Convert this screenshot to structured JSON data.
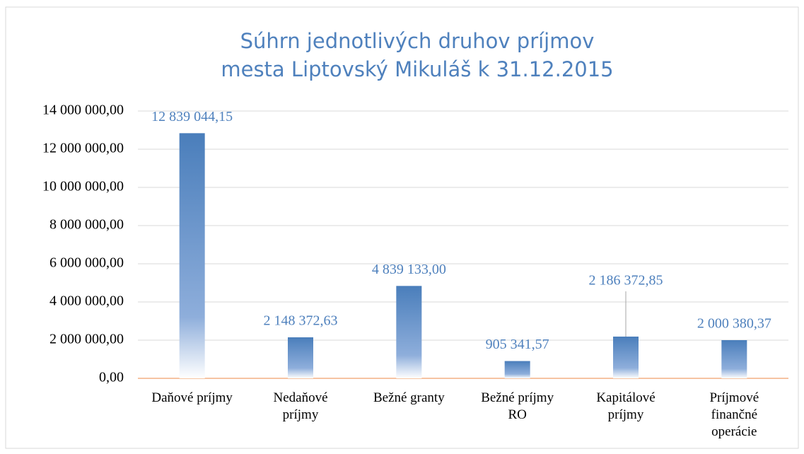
{
  "chart_data": {
    "type": "bar",
    "title": "Súhrn jednotlivých druhov príjmov mesta Liptovský Mikuláš k 31.12.2015",
    "categories": [
      "Daňové príjmy",
      "Nedaňové príjmy",
      "Bežné granty",
      "Bežné príjmy RO",
      "Kapitálové príjmy",
      "Príjmové finančné operácie"
    ],
    "values": [
      12839044.15,
      2148372.63,
      4839133.0,
      905341.57,
      2186372.85,
      2000380.37
    ],
    "value_labels": [
      "12 839 044,15",
      "2 148 372,63",
      "4 839 133,00",
      "905 341,57",
      "2 186 372,85",
      "2 000 380,37"
    ],
    "color": "#4a7ebb",
    "ylim": [
      0,
      14000000
    ],
    "yticks": [
      {
        "value": 0,
        "label": "0,00"
      },
      {
        "value": 2000000,
        "label": "2 000 000,00"
      },
      {
        "value": 4000000,
        "label": "4 000 000,00"
      },
      {
        "value": 6000000,
        "label": "6 000 000,00"
      },
      {
        "value": 8000000,
        "label": "8 000 000,00"
      },
      {
        "value": 10000000,
        "label": "10 000 000,00"
      },
      {
        "value": 12000000,
        "label": "12 000 000,00"
      },
      {
        "value": 14000000,
        "label": "14 000 000,00"
      }
    ],
    "grid": true
  }
}
